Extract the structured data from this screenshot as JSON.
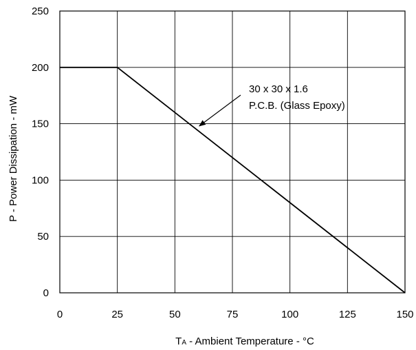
{
  "chart_data": {
    "type": "line",
    "xlabel_main": "T",
    "xlabel_sub": "A",
    "xlabel_rest": " - Ambient Temperature - °C",
    "ylabel": "P - Power Dissipation - mW",
    "xlim": [
      0,
      150
    ],
    "ylim": [
      0,
      250
    ],
    "x_ticks": [
      0,
      25,
      50,
      75,
      100,
      125,
      150
    ],
    "y_ticks": [
      0,
      50,
      100,
      150,
      200,
      250
    ],
    "x_tick_labels": [
      "0",
      "25",
      "50",
      "75",
      "100",
      "125",
      "150"
    ],
    "y_tick_labels": [
      "0",
      "50",
      "100",
      "150",
      "200",
      "250"
    ],
    "grid": true,
    "series": [
      {
        "x": [
          0,
          25,
          150
        ],
        "y": [
          200,
          200,
          0
        ]
      }
    ],
    "annotation": {
      "lines": [
        "30 x 30 x 1.6",
        "P.C.B. (Glass Epoxy)"
      ],
      "arrow_target": [
        60,
        148
      ]
    },
    "colors": {
      "line": "#000000",
      "grid": "#000000",
      "background": "#ffffff"
    }
  }
}
